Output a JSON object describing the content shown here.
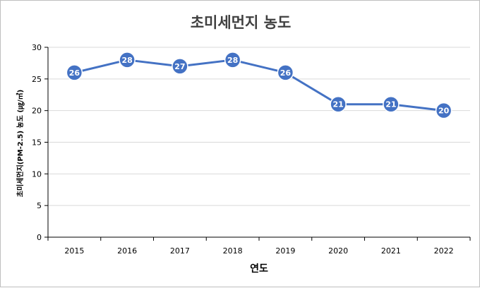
{
  "chart_data": {
    "type": "line",
    "title": "초미세먼지 농도",
    "xlabel": "연도",
    "ylabel": "초미세먼지(PM-2.5) 농도 (㎍/㎥)",
    "categories": [
      "2015",
      "2016",
      "2017",
      "2018",
      "2019",
      "2020",
      "2021",
      "2022"
    ],
    "series": [
      {
        "values": [
          26,
          28,
          27,
          28,
          26,
          21,
          21,
          20
        ]
      }
    ],
    "ylim": [
      0,
      30
    ],
    "yticks": [
      0,
      5,
      10,
      15,
      20,
      25,
      30
    ],
    "grid": true,
    "data_labels": true,
    "legend": "none",
    "colors": {
      "line": "#4472c4",
      "marker": "#4472c4",
      "grid": "#d9d9d9",
      "axis": "#000000"
    }
  }
}
